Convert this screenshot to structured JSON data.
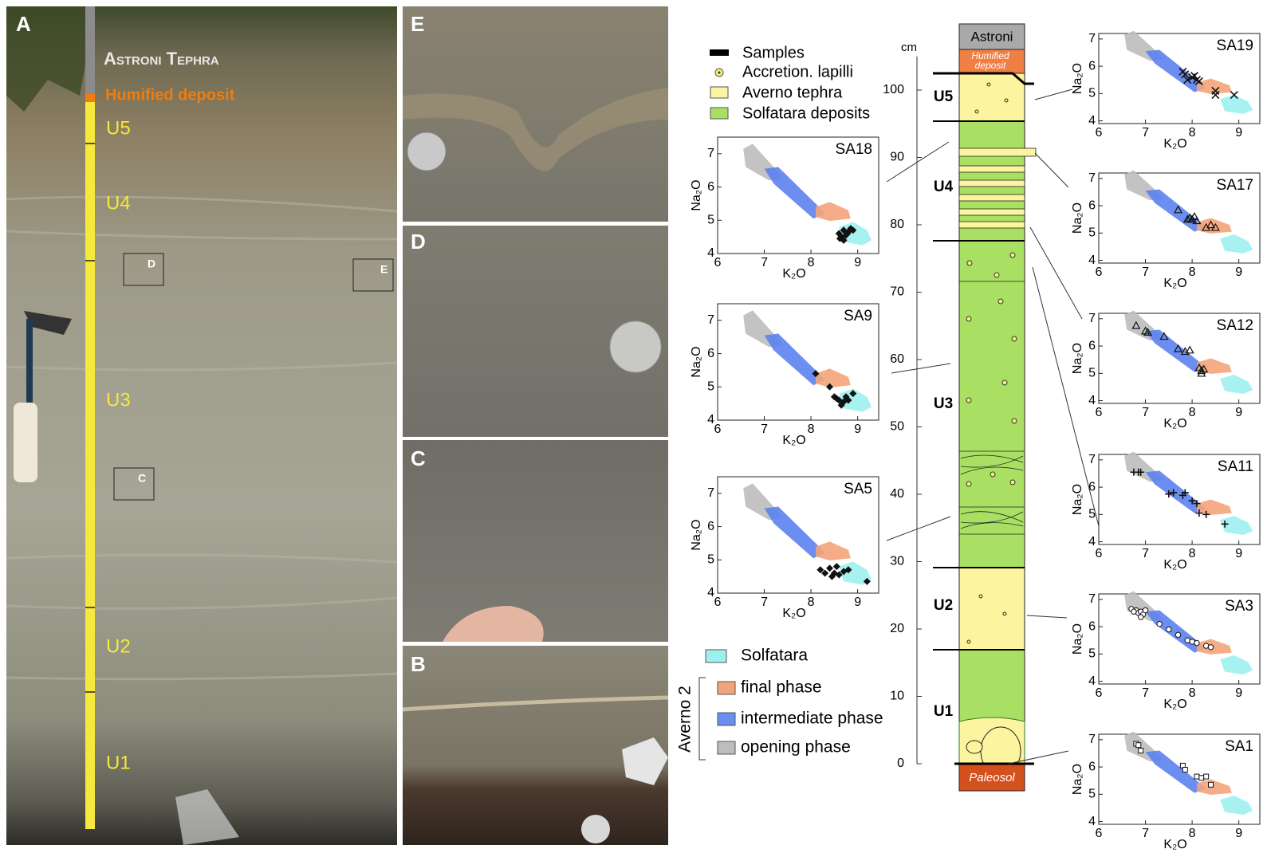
{
  "photo_a": {
    "label": "A",
    "tephra": "Astroni Tephra",
    "humified": "Humified deposit",
    "units": [
      "U5",
      "U4",
      "U3",
      "U2",
      "U1"
    ],
    "boxes": [
      "D",
      "E",
      "C"
    ]
  },
  "photos": [
    "E",
    "D",
    "C",
    "B"
  ],
  "legend_top": [
    "Samples",
    "Accretion. lapilli",
    "Averno tephra",
    "Solfatara deposits"
  ],
  "legend_bottom": {
    "group": "Averno 2",
    "items": [
      "Solfatara",
      "final phase",
      "intermediate phase",
      "opening phase"
    ]
  },
  "column": {
    "unit_label": "cm",
    "ylim": [
      0,
      105
    ],
    "ticks": [
      0,
      10,
      20,
      30,
      40,
      50,
      60,
      70,
      80,
      90,
      100
    ],
    "top": "Astroni",
    "humified": [
      "Humified",
      "deposit"
    ],
    "bottom": "Paleosol",
    "units": [
      "U5",
      "U4",
      "U3",
      "U2",
      "U1"
    ]
  },
  "plots": [
    {
      "title": "SA18",
      "x_label": "K₂O",
      "y_label": "Na₂O",
      "xlim": [
        6,
        9.45
      ],
      "ylim": [
        4,
        7.5
      ],
      "xticks": [
        6,
        7,
        8,
        9
      ],
      "yticks": [
        4,
        5,
        6,
        7
      ],
      "marker": "diamond",
      "x": [
        8.6,
        8.65,
        8.7,
        8.75,
        8.8,
        8.85,
        8.7,
        8.62,
        8.78,
        8.9
      ],
      "y": [
        4.6,
        4.5,
        4.7,
        4.55,
        4.65,
        4.75,
        4.4,
        4.45,
        4.6,
        4.7
      ]
    },
    {
      "title": "SA9",
      "x_label": "K₂O",
      "y_label": "Na₂O",
      "xlim": [
        6,
        9.45
      ],
      "ylim": [
        4,
        7.5
      ],
      "xticks": [
        6,
        7,
        8,
        9
      ],
      "yticks": [
        4,
        5,
        6,
        7
      ],
      "marker": "diamond",
      "x": [
        8.1,
        8.4,
        8.5,
        8.6,
        8.7,
        8.75,
        8.8,
        8.65,
        8.9,
        8.55
      ],
      "y": [
        5.4,
        5.0,
        4.7,
        4.6,
        4.55,
        4.7,
        4.6,
        4.45,
        4.8,
        4.65
      ]
    },
    {
      "title": "SA5",
      "x_label": "K₂O",
      "y_label": "Na₂O",
      "xlim": [
        6,
        9.45
      ],
      "ylim": [
        4,
        7.5
      ],
      "xticks": [
        6,
        7,
        8,
        9
      ],
      "yticks": [
        4,
        5,
        6,
        7
      ],
      "marker": "diamond",
      "x": [
        8.2,
        8.3,
        8.4,
        8.5,
        8.55,
        8.6,
        8.7,
        8.8,
        8.45,
        9.2
      ],
      "y": [
        4.7,
        4.6,
        4.75,
        4.6,
        4.8,
        4.55,
        4.65,
        4.7,
        4.5,
        4.35
      ]
    },
    {
      "title": "SA19",
      "x_label": "K₂O",
      "y_label": "Na₂O",
      "xlim": [
        6,
        9.45
      ],
      "ylim": [
        3.9,
        7.2
      ],
      "xticks": [
        6,
        7,
        8,
        9
      ],
      "yticks": [
        4,
        5,
        6,
        7
      ],
      "marker": "cross",
      "x": [
        7.8,
        7.9,
        8.0,
        8.05,
        8.1,
        8.15,
        8.5,
        8.5,
        8.9,
        7.85
      ],
      "y": [
        5.8,
        5.5,
        5.6,
        5.65,
        5.5,
        5.45,
        5.1,
        4.95,
        4.95,
        5.7
      ]
    },
    {
      "title": "SA17",
      "x_label": "K₂O",
      "y_label": "Na₂O",
      "xlim": [
        6,
        9.45
      ],
      "ylim": [
        3.9,
        7.2
      ],
      "xticks": [
        6,
        7,
        8,
        9
      ],
      "yticks": [
        4,
        5,
        6,
        7
      ],
      "marker": "triangle",
      "x": [
        7.7,
        7.9,
        7.95,
        8.05,
        8.1,
        8.3,
        8.4,
        8.5,
        8.0
      ],
      "y": [
        5.85,
        5.5,
        5.55,
        5.6,
        5.45,
        5.2,
        5.3,
        5.2,
        5.5
      ]
    },
    {
      "title": "SA12",
      "x_label": "K₂O",
      "y_label": "Na₂O",
      "xlim": [
        6,
        9.45
      ],
      "ylim": [
        3.9,
        7.2
      ],
      "xticks": [
        6,
        7,
        8,
        9
      ],
      "yticks": [
        4,
        5,
        6,
        7
      ],
      "marker": "triangle",
      "x": [
        6.8,
        7.0,
        7.05,
        7.4,
        7.7,
        7.85,
        7.95,
        8.15,
        8.2,
        8.2,
        8.25
      ],
      "y": [
        6.75,
        6.55,
        6.5,
        6.35,
        5.9,
        5.8,
        5.85,
        5.2,
        5.1,
        5.0,
        5.15
      ]
    },
    {
      "title": "SA11",
      "x_label": "K₂O",
      "y_label": "Na₂O",
      "xlim": [
        6,
        9.45
      ],
      "ylim": [
        3.9,
        7.2
      ],
      "xticks": [
        6,
        7,
        8,
        9
      ],
      "yticks": [
        4,
        5,
        6,
        7
      ],
      "marker": "plus",
      "x": [
        6.75,
        6.85,
        6.9,
        7.5,
        7.8,
        7.85,
        8.0,
        8.1,
        8.15,
        8.3,
        8.7,
        7.6
      ],
      "y": [
        6.55,
        6.55,
        6.55,
        5.75,
        5.7,
        5.8,
        5.5,
        5.4,
        5.05,
        5.0,
        4.65,
        5.8
      ]
    },
    {
      "title": "SA3",
      "x_label": "K₂O",
      "y_label": "Na₂O",
      "xlim": [
        6,
        9.45
      ],
      "ylim": [
        3.9,
        7.2
      ],
      "xticks": [
        6,
        7,
        8,
        9
      ],
      "yticks": [
        4,
        5,
        6,
        7
      ],
      "marker": "circle",
      "x": [
        6.7,
        6.8,
        6.85,
        6.9,
        6.95,
        7.0,
        7.3,
        7.5,
        7.7,
        7.9,
        8.0,
        8.1,
        8.3,
        8.4,
        6.75,
        6.9
      ],
      "y": [
        6.65,
        6.6,
        6.5,
        6.55,
        6.45,
        6.6,
        6.1,
        5.9,
        5.7,
        5.5,
        5.45,
        5.4,
        5.3,
        5.25,
        6.55,
        6.35
      ]
    },
    {
      "title": "SA1",
      "x_label": "K₂O",
      "y_label": "Na₂O",
      "xlim": [
        6,
        9.45
      ],
      "ylim": [
        3.9,
        7.2
      ],
      "xticks": [
        6,
        7,
        8,
        9
      ],
      "yticks": [
        4,
        5,
        6,
        7
      ],
      "marker": "square",
      "x": [
        6.8,
        6.85,
        6.9,
        7.8,
        7.85,
        8.1,
        8.2,
        8.3,
        8.4
      ],
      "y": [
        6.85,
        6.8,
        6.6,
        6.05,
        5.9,
        5.65,
        5.6,
        5.65,
        5.35
      ]
    }
  ]
}
